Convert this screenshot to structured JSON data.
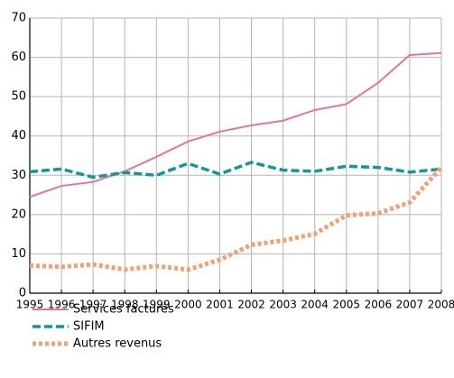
{
  "chart_data": {
    "type": "line",
    "categories": [
      "1995",
      "1996",
      "1997",
      "1998",
      "1999",
      "2000",
      "2001",
      "2002",
      "2003",
      "2004",
      "2005",
      "2006",
      "2007",
      "2008"
    ],
    "series": [
      {
        "name": "Services facturés",
        "color": "#e8739a",
        "style": "solid",
        "values": [
          24.5,
          27.3,
          28.3,
          31,
          34.7,
          38.6,
          41.1,
          42.7,
          43.9,
          46.6,
          48.1,
          53.5,
          60.6,
          61.1
        ]
      },
      {
        "name": "SIFIM",
        "color": "#10999a",
        "style": "dashed",
        "values": [
          30.9,
          31.6,
          29.5,
          30.7,
          30,
          33,
          30.3,
          33.3,
          31.3,
          31,
          32.3,
          32,
          30.8,
          31.6
        ]
      },
      {
        "name": "Autres revenus",
        "color": "#f4a071",
        "style": "dotted",
        "values": [
          7,
          6.7,
          7.3,
          6,
          6.9,
          6,
          8.5,
          12.3,
          13.4,
          15.1,
          19.8,
          20.3,
          23.1,
          32
        ]
      }
    ],
    "ylim": [
      0,
      70
    ],
    "yticks": [
      0,
      10,
      20,
      30,
      40,
      50,
      60,
      70
    ],
    "grid": true,
    "legend": "bottom-left"
  }
}
